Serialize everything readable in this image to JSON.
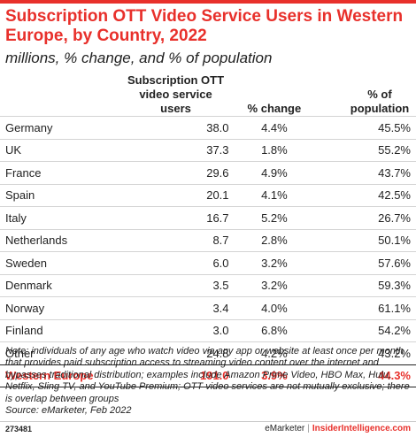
{
  "title": "Subscription OTT Video Service Users in Western Europe, by Country, 2022",
  "subtitle": "millions, % change, and % of population",
  "chart_data": {
    "type": "table",
    "columns": [
      "",
      "Subscription OTT video service users",
      "% change",
      "% of population"
    ],
    "rows": [
      {
        "country": "Germany",
        "users": "38.0",
        "change": "4.4%",
        "population": "45.5%"
      },
      {
        "country": "UK",
        "users": "37.3",
        "change": "1.8%",
        "population": "55.2%"
      },
      {
        "country": "France",
        "users": "29.6",
        "change": "4.9%",
        "population": "43.7%"
      },
      {
        "country": "Spain",
        "users": "20.1",
        "change": "4.1%",
        "population": "42.5%"
      },
      {
        "country": "Italy",
        "users": "16.7",
        "change": "5.2%",
        "population": "26.7%"
      },
      {
        "country": "Netherlands",
        "users": "8.7",
        "change": "2.8%",
        "population": "50.1%"
      },
      {
        "country": "Sweden",
        "users": "6.0",
        "change": "3.2%",
        "population": "57.6%"
      },
      {
        "country": "Denmark",
        "users": "3.5",
        "change": "3.2%",
        "population": "59.3%"
      },
      {
        "country": "Norway",
        "users": "3.4",
        "change": "4.0%",
        "population": "61.1%"
      },
      {
        "country": "Finland",
        "users": "3.0",
        "change": "6.8%",
        "population": "54.2%"
      },
      {
        "country": "Other",
        "users": "24.8",
        "change": "4.2%",
        "population": "43.2%"
      }
    ],
    "total": {
      "country": "Western Europe",
      "users": "191.0",
      "change": "3.9%",
      "population": "44.3%"
    }
  },
  "note": "Note: individuals of any age who watch video via any app or website at least once per month that provides paid subscription access to streaming video content over the internet and bypasses traditional distribution; examples include Amazon Prime Video, HBO Max, Hulu, Netflix, Sling TV, and YouTube Premium; OTT video services are not mutually exclusive; there is overlap between groups",
  "source": "Source: eMarketer, Feb 2022",
  "footer": {
    "id": "273481",
    "brand1": "eMarketer",
    "separator": "|",
    "brand2": "InsiderIntelligence.com"
  },
  "colors": {
    "accent": "#e8302b",
    "text": "#222222",
    "rule": "#d4d4d4"
  }
}
